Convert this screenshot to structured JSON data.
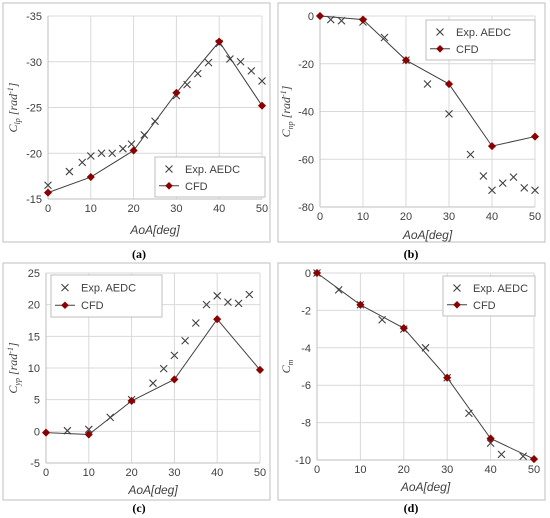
{
  "chart_data": [
    {
      "type": "line",
      "panel_label": "(a)",
      "ylabel_main": "C",
      "ylabel_sub": "lp",
      "ylabel_suffix": " [rad",
      "ylabel_sup": "-1",
      "ylabel_close": "]",
      "xlabel": "AoA[deg]",
      "xlim": [
        0,
        50
      ],
      "ylim": [
        -15,
        -35
      ],
      "xticks": [
        0,
        10,
        20,
        30,
        40,
        50
      ],
      "yticks": [
        -15,
        -20,
        -25,
        -30,
        -35
      ],
      "legend": "bottom-right",
      "series": [
        {
          "name": "Exp. AEDC",
          "marker": "x",
          "line": false,
          "x": [
            0,
            5,
            8,
            10,
            12.5,
            15,
            17.5,
            19.5,
            22.5,
            25,
            30,
            32.5,
            35,
            37.5,
            40,
            42.5,
            45,
            47.5,
            50
          ],
          "y": [
            -16.5,
            -18,
            -19,
            -19.7,
            -20,
            -20,
            -20.5,
            -21,
            -22,
            -23.5,
            -26.3,
            -27.5,
            -28.7,
            -29.9,
            -32,
            -30.3,
            -30,
            -29,
            -27.9
          ]
        },
        {
          "name": "CFD",
          "marker": "diamond",
          "line": true,
          "x": [
            0,
            10,
            20,
            30,
            40,
            50
          ],
          "y": [
            -15.7,
            -17.4,
            -20.3,
            -26.6,
            -32.2,
            -25.2
          ]
        }
      ]
    },
    {
      "type": "line",
      "panel_label": "(b)",
      "ylabel_main": "C",
      "ylabel_sub": "np",
      "ylabel_suffix": " [rad",
      "ylabel_sup": "-1",
      "ylabel_close": "]",
      "xlabel": "AoA[deg]",
      "xlim": [
        0,
        50
      ],
      "ylim": [
        -80,
        0
      ],
      "xticks": [
        0,
        10,
        20,
        30,
        40,
        50
      ],
      "yticks": [
        0,
        -20,
        -40,
        -60,
        -80
      ],
      "legend": "top-right",
      "series": [
        {
          "name": "Exp. AEDC",
          "marker": "x",
          "line": false,
          "x": [
            2.5,
            5,
            10,
            15,
            20,
            25,
            30,
            35,
            38,
            40,
            42.5,
            45,
            47.5,
            50
          ],
          "y": [
            -1.5,
            -2,
            -2.5,
            -9,
            -18.5,
            -28.5,
            -41,
            -58,
            -67,
            -73,
            -70,
            -67.5,
            -72,
            -73
          ]
        },
        {
          "name": "CFD",
          "marker": "diamond",
          "line": true,
          "x": [
            0,
            10,
            20,
            30,
            40,
            50
          ],
          "y": [
            0,
            -1.5,
            -18.5,
            -28.5,
            -54.5,
            -50.5
          ]
        }
      ]
    },
    {
      "type": "line",
      "panel_label": "(c)",
      "ylabel_main": "C",
      "ylabel_sub": "yp",
      "ylabel_suffix": " [rad",
      "ylabel_sup": "-1",
      "ylabel_close": "]",
      "xlabel": "AoA[deg]",
      "xlim": [
        0,
        50
      ],
      "ylim": [
        -5,
        25
      ],
      "xticks": [
        0,
        10,
        20,
        30,
        40,
        50
      ],
      "yticks": [
        -5,
        0,
        5,
        10,
        15,
        20,
        25
      ],
      "legend": "top-left",
      "series": [
        {
          "name": "Exp. AEDC",
          "marker": "x",
          "line": false,
          "x": [
            5,
            10,
            15,
            20,
            25,
            27.5,
            30,
            32.5,
            35,
            37.5,
            40,
            42.5,
            45,
            47.5
          ],
          "y": [
            0.1,
            0.3,
            2.2,
            5,
            7.6,
            9.9,
            12,
            14.3,
            17.1,
            20,
            21.4,
            20.4,
            20.2,
            21.6
          ]
        },
        {
          "name": "CFD",
          "marker": "diamond",
          "line": true,
          "x": [
            0,
            10,
            20,
            30,
            40,
            50
          ],
          "y": [
            -0.2,
            -0.5,
            4.8,
            8.2,
            17.7,
            9.7
          ]
        }
      ]
    },
    {
      "type": "line",
      "panel_label": "(d)",
      "ylabel_main": "C",
      "ylabel_sub": "m",
      "ylabel_suffix": "",
      "ylabel_sup": "",
      "ylabel_close": "",
      "xlabel": "AoA[deg]",
      "xlim": [
        0,
        50
      ],
      "ylim": [
        -10,
        0
      ],
      "xticks": [
        0,
        10,
        20,
        30,
        40,
        50
      ],
      "yticks": [
        0,
        -2,
        -4,
        -6,
        -8,
        -10
      ],
      "legend": "top-right",
      "series": [
        {
          "name": "Exp. AEDC",
          "marker": "x",
          "line": false,
          "x": [
            0,
            5,
            10,
            15,
            20,
            25,
            30,
            35,
            40,
            42.5,
            47.5
          ],
          "y": [
            0,
            -0.9,
            -1.7,
            -2.5,
            -3,
            -4,
            -5.6,
            -7.5,
            -9.1,
            -9.7,
            -9.8
          ]
        },
        {
          "name": "CFD",
          "marker": "diamond",
          "line": true,
          "x": [
            0,
            10,
            20,
            30,
            40,
            50
          ],
          "y": [
            0,
            -1.7,
            -2.95,
            -5.6,
            -8.85,
            -9.95
          ]
        }
      ]
    }
  ]
}
